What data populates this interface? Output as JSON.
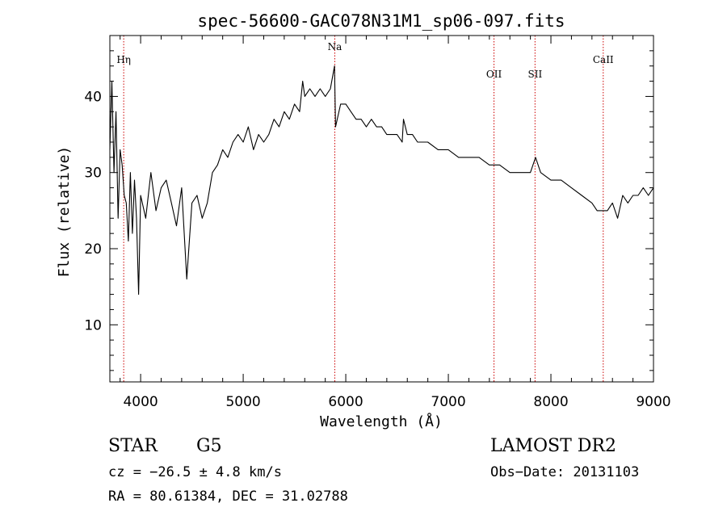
{
  "chart_data": {
    "type": "line",
    "title": "spec-56600-GAC078N31M1_sp06-097.fits",
    "xlabel": "Wavelength (Å)",
    "ylabel": "Flux (relative)",
    "xlim": [
      3700,
      9000
    ],
    "ylim": [
      2.5,
      48
    ],
    "xticks": [
      4000,
      5000,
      6000,
      7000,
      8000,
      9000
    ],
    "yticks": [
      10,
      20,
      30,
      40
    ],
    "grid": false,
    "line_color": "#000000",
    "marker_color": "#cc0000",
    "lines": [
      {
        "label": "Hη",
        "wavelength": 3835
      },
      {
        "label": "Na",
        "wavelength": 5893
      },
      {
        "label": "OII",
        "wavelength": 7445
      },
      {
        "label": "SII",
        "wavelength": 7845
      },
      {
        "label": "CaII",
        "wavelength": 8510
      }
    ],
    "series": [
      {
        "x": [
          3700,
          3720,
          3740,
          3760,
          3780,
          3800,
          3820,
          3840,
          3860,
          3880,
          3900,
          3920,
          3940,
          3960,
          3980,
          4000,
          4050,
          4100,
          4150,
          4200,
          4250,
          4300,
          4350,
          4400,
          4450,
          4500,
          4550,
          4600,
          4650,
          4700,
          4750,
          4800,
          4850,
          4900,
          4950,
          5000,
          5050,
          5100,
          5150,
          5200,
          5250,
          5300,
          5350,
          5400,
          5450,
          5500,
          5550,
          5580,
          5600,
          5650,
          5700,
          5750,
          5800,
          5850,
          5890,
          5900,
          5950,
          6000,
          6050,
          6100,
          6150,
          6200,
          6250,
          6300,
          6350,
          6400,
          6450,
          6500,
          6550,
          6563,
          6600,
          6650,
          6700,
          6800,
          6900,
          7000,
          7100,
          7200,
          7300,
          7400,
          7500,
          7600,
          7700,
          7800,
          7850,
          7900,
          8000,
          8100,
          8200,
          8300,
          8400,
          8450,
          8500,
          8550,
          8600,
          8650,
          8700,
          8750,
          8800,
          8850,
          8900,
          8950,
          9000
        ],
        "y": [
          33,
          42,
          30,
          38,
          24,
          33,
          31,
          27,
          26,
          21,
          30,
          22,
          29,
          24,
          14,
          27,
          24,
          30,
          25,
          28,
          29,
          26,
          23,
          28,
          16,
          26,
          27,
          24,
          26,
          30,
          31,
          33,
          32,
          34,
          35,
          34,
          36,
          33,
          35,
          34,
          35,
          37,
          36,
          38,
          37,
          39,
          38,
          42,
          40,
          41,
          40,
          41,
          40,
          41,
          44,
          36,
          39,
          39,
          38,
          37,
          37,
          36,
          37,
          36,
          36,
          35,
          35,
          35,
          34,
          37,
          35,
          35,
          34,
          34,
          33,
          33,
          32,
          32,
          32,
          31,
          31,
          30,
          30,
          30,
          32,
          30,
          29,
          29,
          28,
          27,
          26,
          25,
          25,
          25,
          26,
          24,
          27,
          26,
          27,
          27,
          28,
          27,
          28
        ]
      }
    ]
  },
  "info": {
    "class": "STAR",
    "subclass": "G5",
    "cz": "cz = −26.5 ± 4.8 km/s",
    "coords": "RA =  80.61384, DEC =  31.02788",
    "survey": "LAMOST DR2",
    "obs_date": "Obs−Date: 20131103"
  }
}
